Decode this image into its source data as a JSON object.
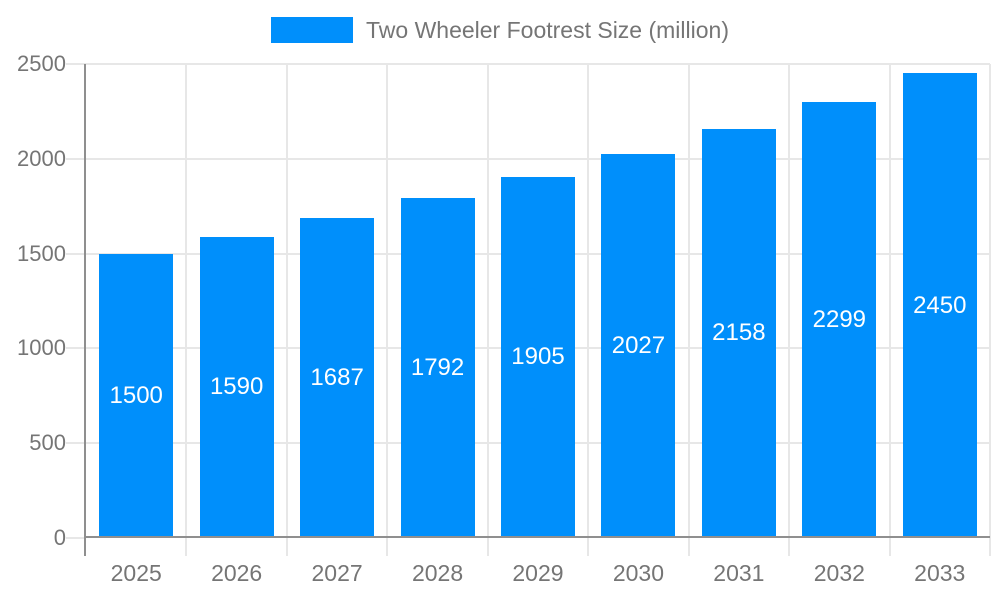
{
  "legend": {
    "label": "Two Wheeler Footrest Size (million)"
  },
  "colors": {
    "bar": "#008FFB",
    "axis": "#8f8f8f",
    "grid": "#e7e7e7",
    "tick_text": "#757575",
    "bar_label": "#ffffff",
    "background": "#ffffff"
  },
  "chart_data": {
    "type": "bar",
    "title": "Two Wheeler Footrest Size (million)",
    "categories": [
      "2025",
      "2026",
      "2027",
      "2028",
      "2029",
      "2030",
      "2031",
      "2032",
      "2033"
    ],
    "values": [
      1500,
      1590,
      1687,
      1792,
      1905,
      2027,
      2158,
      2299,
      2450
    ],
    "xlabel": "",
    "ylabel": "",
    "ylim": [
      0,
      2500
    ],
    "yticks": [
      0,
      500,
      1000,
      1500,
      2000,
      2500
    ],
    "grid": true,
    "legend_position": "top",
    "bar_value_labels": "inside-center"
  }
}
